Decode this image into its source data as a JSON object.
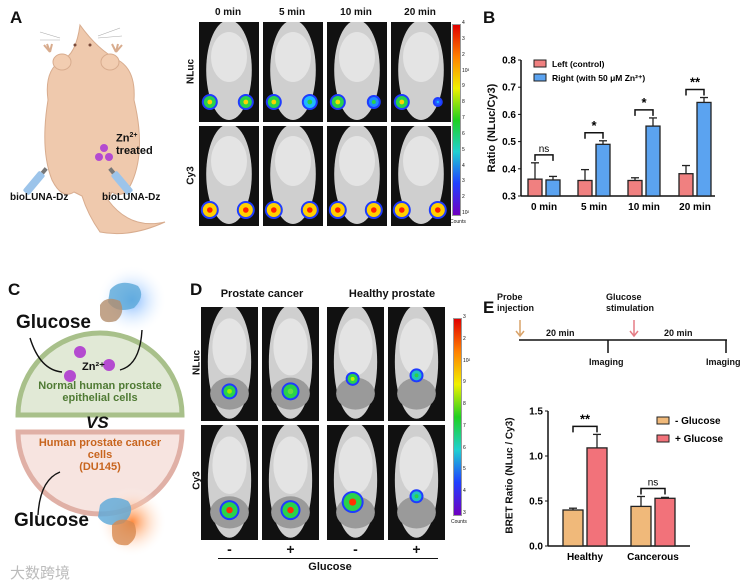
{
  "panels": {
    "a": {
      "label": "A",
      "zn_label": "Zn",
      "zn_sup": "2+",
      "treated": "treated",
      "probe_left": "bioLUNA-Dz",
      "probe_right": "bioLUNA-Dz",
      "columns": [
        "0 min",
        "5 min",
        "10 min",
        "20 min"
      ],
      "rows": [
        "NLuc",
        "Cy3"
      ],
      "colorbar": {
        "ticks": [
          "4",
          "3",
          "2",
          "10³",
          "9",
          "8",
          "7",
          "6",
          "5",
          "4",
          "3",
          "2",
          "10²"
        ],
        "unit": "Counts"
      }
    },
    "b": {
      "label": "B"
    },
    "c": {
      "label": "C",
      "glucose_top": "Glucose",
      "glucose_bottom": "Glucose",
      "zn": "Zn²⁺",
      "normal_cells": "Normal human prostate epithelial cells",
      "vs": "VS",
      "cancer_cells_1": "Human prostate cancer",
      "cancer_cells_2": "cells",
      "cancer_cells_3": "(DU145)",
      "watermark": "大数跨境"
    },
    "d": {
      "label": "D",
      "groups": [
        "Prostate cancer",
        "Healthy prostate"
      ],
      "rows": [
        "NLuc",
        "Cy3"
      ],
      "conditions": [
        "-",
        "+",
        "-",
        "+"
      ],
      "xlabel": "Glucose",
      "colorbar": {
        "ticks": [
          "3",
          "2",
          "10²",
          "9",
          "8",
          "7",
          "6",
          "5",
          "4",
          "3"
        ],
        "unit": "Counts"
      }
    },
    "e": {
      "label": "E",
      "timeline": {
        "probe": "Probe injection",
        "stim_1": "Glucose",
        "stim_2": "stimulation",
        "interval_1": "20 min",
        "interval_2": "20 min",
        "imaging_1": "Imaging",
        "imaging_2": "Imaging"
      }
    }
  },
  "colors": {
    "left": "#f08080",
    "right": "#5ba3f0",
    "minus_glucose": "#f0b97a",
    "plus_glucose": "#f2727a",
    "green_cell": "#dfe8d4",
    "pink_cell": "#f6e3df",
    "normal_text": "#4f7a34",
    "cancer_text": "#c8651e"
  },
  "chart_data": [
    {
      "type": "bar",
      "title": "",
      "ylabel": "Ratio (NLuc/Cy3)",
      "xlabel": "",
      "ylim": [
        0.3,
        0.8
      ],
      "yticks": [
        "0.3",
        "0.4",
        "0.5",
        "0.6",
        "0.7",
        "0.8"
      ],
      "ytick_values": [
        0.3,
        0.4,
        0.5,
        0.6,
        0.7,
        0.8
      ],
      "categories": [
        "0 min",
        "5 min",
        "10 min",
        "20 min"
      ],
      "legend_position": "top-left",
      "series": [
        {
          "name": "Left (control)",
          "values": [
            0.362,
            0.357,
            0.357,
            0.382
          ],
          "errors": [
            0.06,
            0.04,
            0.01,
            0.03
          ],
          "color": "#f08080"
        },
        {
          "name": "Right (with 50 μM Zn²⁺)",
          "values": [
            0.359,
            0.49,
            0.557,
            0.644
          ],
          "errors": [
            0.013,
            0.013,
            0.03,
            0.018
          ],
          "color": "#5ba3f0"
        }
      ],
      "significance": [
        "ns",
        "*",
        "*",
        "**"
      ]
    },
    {
      "type": "bar",
      "title": "",
      "ylabel": "BRET Ratio (NLuc / Cy3)",
      "xlabel": "",
      "ylim": [
        0,
        1.5
      ],
      "yticks": [
        "0.0",
        "0.5",
        "1.0",
        "1.5"
      ],
      "ytick_values": [
        0,
        0.5,
        1.0,
        1.5
      ],
      "categories": [
        "Healthy",
        "Cancerous"
      ],
      "legend_position": "top-right",
      "series": [
        {
          "name": "- Glucose",
          "values": [
            0.4,
            0.44
          ],
          "errors": [
            0.02,
            0.11
          ],
          "color": "#f0b97a"
        },
        {
          "name": "+ Glucose",
          "values": [
            1.09,
            0.53
          ],
          "errors": [
            0.15,
            0.01
          ],
          "color": "#f2727a"
        }
      ],
      "significance": [
        "**",
        "ns"
      ]
    }
  ]
}
